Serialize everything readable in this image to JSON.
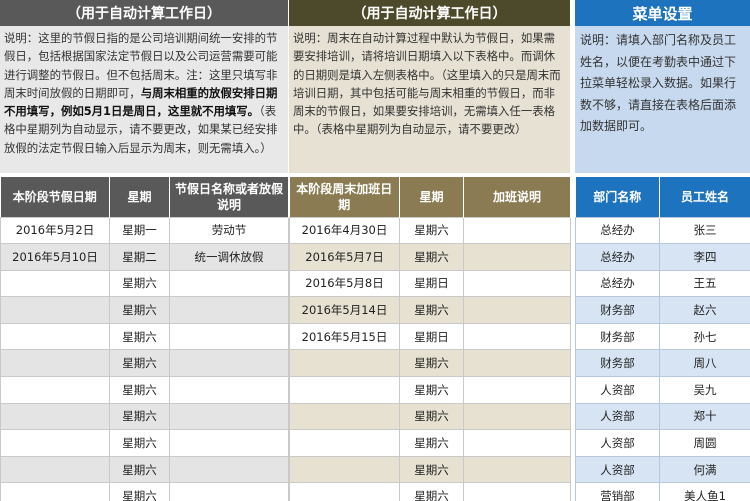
{
  "panel1": {
    "title": "（用于自动计算工作日）",
    "desc_pre": "说明：这里的节假日指的是公司培训期间统一安排的节假日，包括根据国家法定节假日以及公司运营需要可能进行调整的节假日。但不包括周末。注：这里只填写非周末时间放假的日期即可，",
    "desc_bold": "与周末相重的放假安排日期不用填写，例如5月1日是周日，这里就不用填写。",
    "desc_post": "（表格中星期列为自动显示，请不要更改，如果某已经安排放假的法定节假日输入后显示为周末，则无需填入。）",
    "columns": [
      "本阶段节假日期",
      "星期",
      "节假日名称或者放假说明"
    ],
    "rows": [
      [
        "2016年5月2日",
        "星期一",
        "劳动节"
      ],
      [
        "2016年5月10日",
        "星期二",
        "统一调休放假"
      ],
      [
        "",
        "星期六",
        ""
      ],
      [
        "",
        "星期六",
        ""
      ],
      [
        "",
        "星期六",
        ""
      ],
      [
        "",
        "星期六",
        ""
      ],
      [
        "",
        "星期六",
        ""
      ],
      [
        "",
        "星期六",
        ""
      ],
      [
        "",
        "星期六",
        ""
      ],
      [
        "",
        "星期六",
        ""
      ],
      [
        "",
        "星期六",
        ""
      ]
    ]
  },
  "panel2": {
    "title": "（用于自动计算工作日）",
    "desc": "说明：周末在自动计算过程中默认为节假日，如果需要安排培训，请将培训日期填入以下表格中。而调休的日期则是填入左侧表格中。（这里填入的只是周末而培训日期，其中包括可能与周末相重的节假日，而非周末的节假日，如果要安排培训，无需填入任一表格中。（表格中星期列为自动显示，请不要更改）",
    "columns": [
      "本阶段周末加班日期",
      "星期",
      "加班说明"
    ],
    "rows": [
      [
        "2016年4月30日",
        "星期六",
        ""
      ],
      [
        "2016年5月7日",
        "星期六",
        ""
      ],
      [
        "2016年5月8日",
        "星期日",
        ""
      ],
      [
        "2016年5月14日",
        "星期六",
        ""
      ],
      [
        "2016年5月15日",
        "星期日",
        ""
      ],
      [
        "",
        "星期六",
        ""
      ],
      [
        "",
        "星期六",
        ""
      ],
      [
        "",
        "星期六",
        ""
      ],
      [
        "",
        "星期六",
        ""
      ],
      [
        "",
        "星期六",
        ""
      ],
      [
        "",
        "星期六",
        ""
      ]
    ]
  },
  "panel3": {
    "title": "菜单设置",
    "desc": "说明：请填入部门名称及员工姓名，以便在考勤表中通过下拉菜单轻松录入数据。如果行数不够，请直接在表格后面添加数据即可。",
    "columns": [
      "部门名称",
      "员工姓名"
    ],
    "rows": [
      [
        "总经办",
        "张三"
      ],
      [
        "总经办",
        "李四"
      ],
      [
        "总经办",
        "王五"
      ],
      [
        "财务部",
        "赵六"
      ],
      [
        "财务部",
        "孙七"
      ],
      [
        "财务部",
        "周八"
      ],
      [
        "人资部",
        "吴九"
      ],
      [
        "人资部",
        "郑十"
      ],
      [
        "人资部",
        "周圆"
      ],
      [
        "人资部",
        "何满"
      ],
      [
        "营销部",
        "美人鱼1"
      ]
    ]
  }
}
